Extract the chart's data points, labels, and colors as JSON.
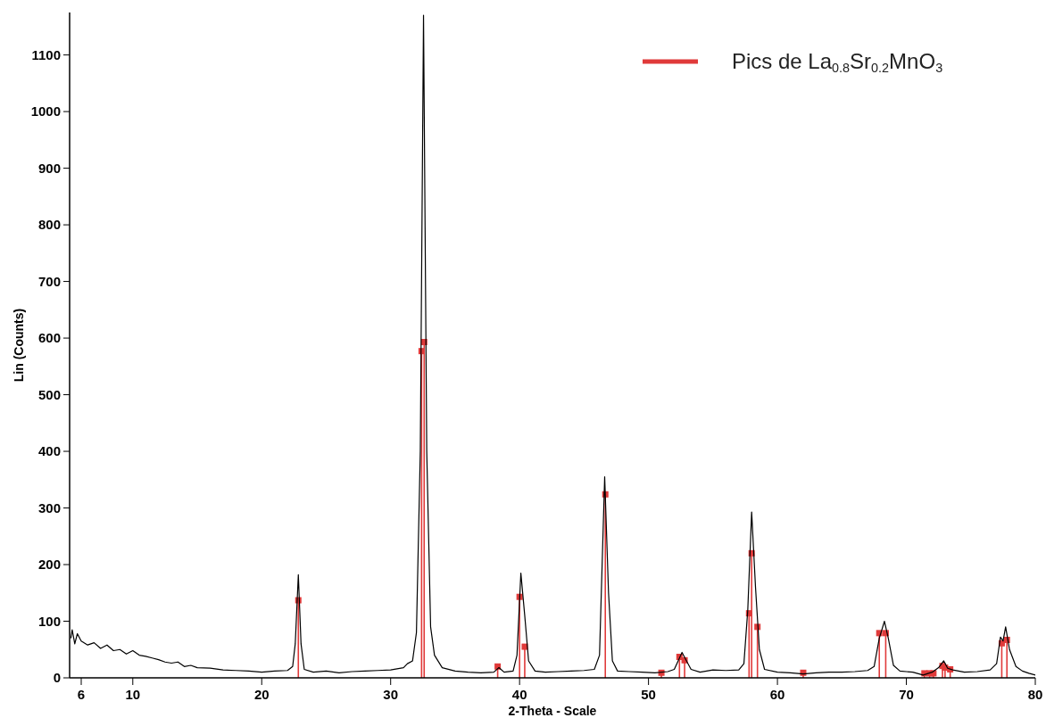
{
  "chart_data": {
    "type": "line",
    "xlabel": "2-Theta - Scale",
    "ylabel": "Lin (Counts)",
    "xlim": [
      5.1,
      80
    ],
    "ylim": [
      0,
      1175
    ],
    "xticks": [
      6,
      10,
      20,
      30,
      40,
      50,
      60,
      70,
      80
    ],
    "yticks": [
      0,
      100,
      200,
      300,
      400,
      500,
      600,
      700,
      800,
      900,
      1000,
      1100
    ],
    "grid": false,
    "legend": "top right",
    "series": [
      {
        "color": "#000000",
        "marker": "none",
        "x": [
          5.2,
          5.3,
          5.5,
          5.7,
          6,
          6.5,
          7,
          7.5,
          8,
          8.5,
          9,
          9.5,
          10,
          10.5,
          11,
          11.5,
          12,
          12.5,
          13,
          13.5,
          14,
          14.5,
          15,
          16,
          17,
          18,
          19,
          20,
          21,
          22,
          22.4,
          22.6,
          22.84,
          23.05,
          23.3,
          24,
          25,
          26,
          27,
          28,
          29,
          30,
          31,
          31.3,
          31.7,
          32,
          32.3,
          32.55,
          32.8,
          33.1,
          33.4,
          34,
          35,
          36,
          37,
          38,
          38.4,
          38.8,
          39.5,
          39.8,
          40.1,
          40.4,
          40.7,
          41.2,
          42,
          43,
          44,
          45,
          45.8,
          46.2,
          46.6,
          46.9,
          47.2,
          47.6,
          48.5,
          49.5,
          50.5,
          51.5,
          52,
          52.3,
          52.6,
          52.9,
          53.3,
          54,
          55,
          56,
          57,
          57.4,
          57.7,
          58,
          58.3,
          58.6,
          59,
          60,
          61,
          62,
          63,
          64,
          65,
          66,
          67,
          67.5,
          67.9,
          68.3,
          68.6,
          69,
          69.5,
          70.5,
          71.3,
          72,
          72.5,
          72.9,
          73.2,
          73.6,
          74.5,
          75.5,
          76.5,
          77,
          77.3,
          77.5,
          77.7,
          78,
          78.5,
          79,
          79.5,
          80
        ],
        "values": [
          70,
          85,
          60,
          78,
          65,
          58,
          62,
          52,
          58,
          48,
          50,
          42,
          48,
          40,
          38,
          35,
          32,
          28,
          26,
          28,
          20,
          22,
          18,
          17,
          14,
          13,
          12,
          10,
          12,
          13,
          20,
          60,
          182,
          60,
          15,
          10,
          12,
          9,
          11,
          12,
          13,
          14,
          18,
          25,
          30,
          80,
          400,
          1170,
          400,
          90,
          40,
          18,
          12,
          10,
          9,
          10,
          18,
          10,
          12,
          40,
          185,
          110,
          30,
          12,
          10,
          11,
          12,
          13,
          15,
          40,
          355,
          150,
          30,
          12,
          11,
          10,
          9,
          11,
          15,
          30,
          45,
          32,
          15,
          10,
          14,
          13,
          14,
          25,
          120,
          293,
          160,
          50,
          15,
          10,
          9,
          7,
          9,
          10,
          10,
          11,
          13,
          20,
          70,
          100,
          70,
          22,
          12,
          10,
          5,
          10,
          18,
          30,
          17,
          14,
          10,
          11,
          14,
          25,
          72,
          65,
          90,
          50,
          20,
          12,
          8,
          5
        ]
      },
      {
        "type": "lollipop",
        "name": "Pics de La$_{0.8}$Sr$_{0.2}$MnO$_{3}$",
        "color": "#e03a3a",
        "marker": "square",
        "x": [
          22.84,
          32.4,
          32.6,
          38.3,
          40.0,
          40.4,
          46.65,
          51.0,
          52.4,
          52.8,
          57.8,
          58.0,
          58.45,
          62.0,
          67.9,
          68.4,
          71.4,
          71.8,
          72.1,
          72.8,
          73.0,
          73.4,
          77.4,
          77.8
        ],
        "values": [
          137,
          577,
          593,
          20,
          143,
          55,
          324,
          9,
          37,
          31,
          114,
          220,
          90,
          9,
          79,
          79,
          8,
          8,
          8,
          21,
          18,
          15,
          61,
          67
        ]
      }
    ]
  }
}
